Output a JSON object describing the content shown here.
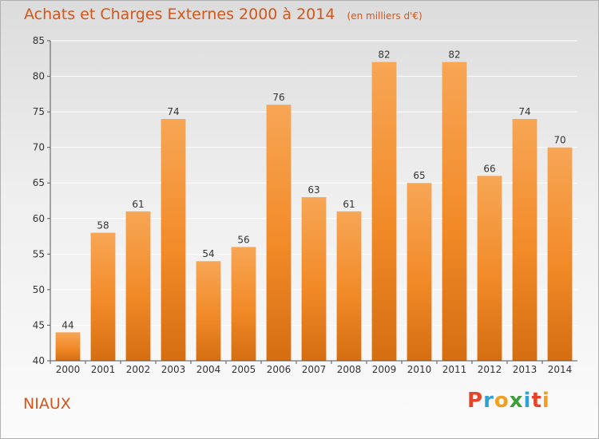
{
  "chart_data": {
    "type": "bar",
    "title": "Achats et Charges Externes 2000 à 2014",
    "subtitle": "(en milliers d'€)",
    "categories": [
      "2000",
      "2001",
      "2002",
      "2003",
      "2004",
      "2005",
      "2006",
      "2007",
      "2008",
      "2009",
      "2010",
      "2011",
      "2012",
      "2013",
      "2014"
    ],
    "values": [
      44,
      58,
      61,
      74,
      54,
      56,
      76,
      63,
      61,
      82,
      65,
      82,
      66,
      74,
      70
    ],
    "ylim": [
      40,
      85
    ],
    "yticks": [
      40,
      45,
      50,
      55,
      60,
      65,
      70,
      75,
      80,
      85
    ],
    "xlabel": "",
    "ylabel": "",
    "grid": true,
    "data_labels": true,
    "bar_color": "#f28a28"
  },
  "footer": {
    "commune": "NIAUX",
    "logo": {
      "text": "Proxiti",
      "letters": [
        {
          "char": "P",
          "color": "#e6452b"
        },
        {
          "char": "r",
          "color": "#2fa2d6"
        },
        {
          "char": "o",
          "color": "#f0a01e"
        },
        {
          "char": "x",
          "color": "#3e9e3a"
        },
        {
          "char": "i",
          "color": "#2fa2d6"
        },
        {
          "char": "t",
          "color": "#e6452b"
        },
        {
          "char": "i",
          "color": "#f0a01e"
        }
      ]
    }
  },
  "colors": {
    "title": "#d4561a",
    "axis": "#555555",
    "grid": "#ffffff"
  }
}
